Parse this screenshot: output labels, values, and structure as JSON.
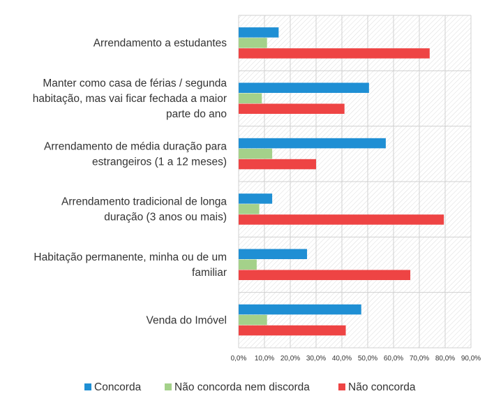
{
  "chart_data": {
    "type": "bar",
    "orientation": "horizontal",
    "categories": [
      [
        "Arrendamento a estudantes"
      ],
      [
        "Manter como casa de férias / segunda",
        "habitação, mas vai ficar fechada a maior",
        "parte do ano"
      ],
      [
        "Arrendamento de média duração para",
        "estrangeiros (1 a 12 meses)"
      ],
      [
        "Arrendamento tradicional de longa",
        "duração (3 anos ou mais)"
      ],
      [
        "Habitação permanente, minha ou de um",
        "familiar"
      ],
      [
        "Venda do Imóvel"
      ]
    ],
    "series": [
      {
        "name": "Concorda",
        "color": "#1f8fd4",
        "values": [
          15.5,
          50.5,
          57.0,
          13.0,
          26.5,
          47.5
        ]
      },
      {
        "name": "Não concorda nem discorda",
        "color": "#a4d18a",
        "values": [
          11.0,
          9.0,
          13.0,
          8.0,
          7.0,
          11.0
        ]
      },
      {
        "name": "Não concorda",
        "color": "#ee4444",
        "values": [
          74.0,
          41.0,
          30.0,
          79.5,
          66.5,
          41.5
        ]
      }
    ],
    "xlim": [
      0,
      90
    ],
    "xticks": [
      0,
      10,
      20,
      30,
      40,
      50,
      60,
      70,
      80,
      90
    ],
    "xtick_labels": [
      "0,0%",
      "10,0%",
      "20,0%",
      "30,0%",
      "40,0%",
      "50,0%",
      "60,0%",
      "70,0%",
      "80,0%",
      "90,0%"
    ],
    "title": "",
    "xlabel": "",
    "ylabel": "",
    "grid": true,
    "background": "hatched",
    "legend_position": "bottom"
  }
}
